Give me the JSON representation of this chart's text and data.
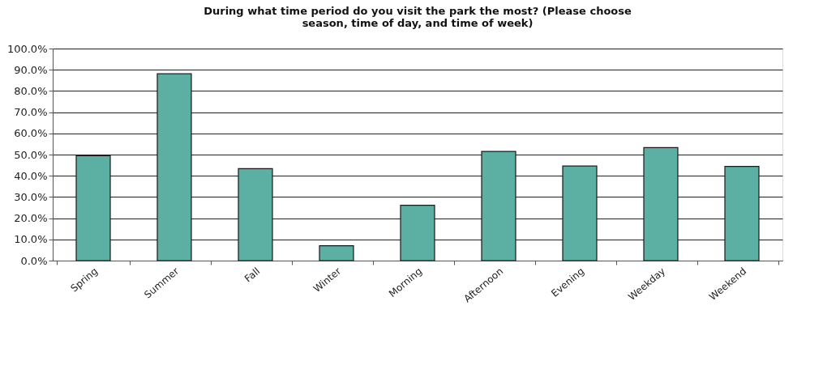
{
  "chart_data": {
    "type": "bar",
    "title": [
      "During what time period do you visit the park the most? (Please choose",
      "season, time of day, and time of week)"
    ],
    "categories": [
      "Spring",
      "Summer",
      "Fall",
      "Winter",
      "Morning",
      "Afternoon",
      "Evening",
      "Weekday",
      "Weekend"
    ],
    "values": [
      49.5,
      88.1,
      43.4,
      7.0,
      26.1,
      51.5,
      44.6,
      53.3,
      44.4
    ],
    "color": "#5cb0a3",
    "ylim": [
      0,
      100
    ],
    "yticks": [
      {
        "value": 0,
        "label": "0.0%"
      },
      {
        "value": 10,
        "label": "10.0%"
      },
      {
        "value": 20,
        "label": "20.0%"
      },
      {
        "value": 30,
        "label": "30.0%"
      },
      {
        "value": 40,
        "label": "40.0%"
      },
      {
        "value": 50,
        "label": "50.0%"
      },
      {
        "value": 60,
        "label": "60.0%"
      },
      {
        "value": 70,
        "label": "70.0%"
      },
      {
        "value": 80,
        "label": "80.0%"
      },
      {
        "value": 90,
        "label": "90.0%"
      },
      {
        "value": 100,
        "label": "100.0%"
      }
    ],
    "grid": "y"
  }
}
